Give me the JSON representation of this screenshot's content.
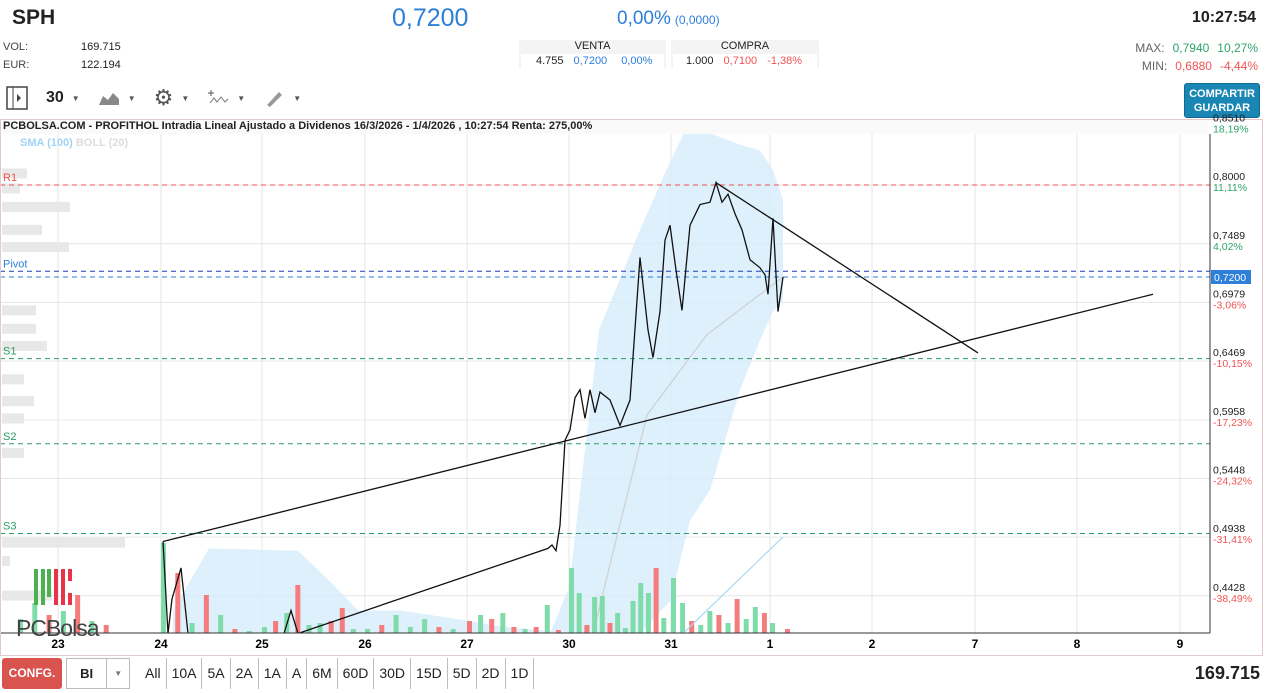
{
  "header": {
    "symbol": "SPH",
    "price": "0,7200",
    "change_pct": "0,00%",
    "change_abs": "(0,0000)",
    "time": "10:27:54",
    "vol_label": "VOL:",
    "vol": "169.715",
    "eur_label": "EUR:",
    "eur": "122.194",
    "max_label": "MAX:",
    "max": "0,7940",
    "max_pct": "10,27%",
    "min_label": "MIN:",
    "min": "0,6880",
    "min_pct": "-4,44%"
  },
  "orderbook": {
    "sell_label": "VENTA",
    "sell_qty": "4.755",
    "sell_price": "0,7200",
    "sell_pct": "0,00%",
    "buy_label": "COMPRA",
    "buy_qty": "1.000",
    "buy_price": "0,7100",
    "buy_pct": "-1,38%"
  },
  "toolbar": {
    "interval": "30",
    "share_label": "COMPARTIR",
    "save_label": "GUARDAR"
  },
  "chart": {
    "title": "PCBOLSA.COM - PROFITHOL Intradia Lineal Ajustado a Dividenos 16/3/2026 - 1/4/2026 , 10:27:54 Renta: 275,00%",
    "legend_sma": "SMA (100)",
    "legend_boll": "BOLL (20)",
    "logo": "PCBolsa",
    "current_price_label": "0,7200"
  },
  "colors": {
    "accent": "#2d7fd8",
    "up": "#2ea36b",
    "down": "#f05454",
    "band": "#d6ecfb",
    "button_red": "#d9534f",
    "share": "#1a86b4"
  },
  "chart_data": {
    "type": "line",
    "x_ticks": [
      "23",
      "24",
      "25",
      "26",
      "27",
      "30",
      "31",
      "1",
      "2",
      "7",
      "8",
      "9"
    ],
    "y_ticks": [
      {
        "v": "0,8510",
        "p": "18,19%"
      },
      {
        "v": "0,8000",
        "p": "11,11%"
      },
      {
        "v": "0,7489",
        "p": "4,02%"
      },
      {
        "v": "0,6979",
        "p": "-3,06%"
      },
      {
        "v": "0,6469",
        "p": "-10,15%"
      },
      {
        "v": "0,5958",
        "p": "-17,23%"
      },
      {
        "v": "0,5448",
        "p": "-24,32%"
      },
      {
        "v": "0,4938",
        "p": "-31,41%"
      },
      {
        "v": "0,4428",
        "p": "-38,49%"
      }
    ],
    "ylim": [
      0.41,
      0.857
    ],
    "grid": true,
    "pivots": [
      {
        "name": "R1",
        "value": 0.8,
        "color": "#f05454"
      },
      {
        "name": "Pivot",
        "value": 0.725,
        "color": "#1f3fbf"
      },
      {
        "name": "S1",
        "value": 0.649,
        "color": "#2a9a6a"
      },
      {
        "name": "S2",
        "value": 0.575,
        "color": "#2a9a6a"
      },
      {
        "name": "S3",
        "value": 0.497,
        "color": "#2a9a6a"
      }
    ],
    "price": [
      [
        "24",
        "09:10",
        0.49
      ],
      [
        "24",
        "09:35",
        0.41
      ],
      [
        "24",
        "09:55",
        0.44
      ],
      [
        "24",
        "10:40",
        0.467
      ],
      [
        "24",
        "11:15",
        0.41
      ],
      [
        "25",
        "10:50",
        0.41
      ],
      [
        "25",
        "11:25",
        0.43
      ],
      [
        "25",
        "12:00",
        0.41
      ],
      [
        "27",
        "15:45",
        0.484
      ],
      [
        "27",
        "16:05",
        0.487
      ],
      [
        "27",
        "16:25",
        0.482
      ],
      [
        "27",
        "16:45",
        0.504
      ],
      [
        "27",
        "17:10",
        0.578
      ],
      [
        "30",
        "09:05",
        0.587
      ],
      [
        "30",
        "09:30",
        0.615
      ],
      [
        "30",
        "09:55",
        0.622
      ],
      [
        "30",
        "10:20",
        0.597
      ],
      [
        "30",
        "10:45",
        0.622
      ],
      [
        "30",
        "11:10",
        0.602
      ],
      [
        "30",
        "11:35",
        0.62
      ],
      [
        "30",
        "12:25",
        0.613
      ],
      [
        "30",
        "13:15",
        0.591
      ],
      [
        "30",
        "14:05",
        0.613
      ],
      [
        "30",
        "14:55",
        0.737
      ],
      [
        "30",
        "15:35",
        0.674
      ],
      [
        "30",
        "16:00",
        0.65
      ],
      [
        "30",
        "16:35",
        0.69
      ],
      [
        "30",
        "17:00",
        0.752
      ],
      [
        "30",
        "17:25",
        0.765
      ],
      [
        "31",
        "09:25",
        0.726
      ],
      [
        "31",
        "09:55",
        0.691
      ],
      [
        "31",
        "10:35",
        0.765
      ],
      [
        "31",
        "11:25",
        0.783
      ],
      [
        "31",
        "12:15",
        0.785
      ],
      [
        "31",
        "12:45",
        0.802
      ],
      [
        "31",
        "13:15",
        0.785
      ],
      [
        "31",
        "13:45",
        0.792
      ],
      [
        "31",
        "14:20",
        0.775
      ],
      [
        "31",
        "14:55",
        0.761
      ],
      [
        "31",
        "15:35",
        0.735
      ],
      [
        "31",
        "16:25",
        0.728
      ],
      [
        "31",
        "16:50",
        0.722
      ],
      [
        "31",
        "17:05",
        0.705
      ],
      [
        "1",
        "09:15",
        0.771
      ],
      [
        "1",
        "09:40",
        0.69
      ],
      [
        "1",
        "10:05",
        0.72
      ]
    ],
    "bollinger": [
      [
        "24",
        "10:00",
        0.43,
        0.41
      ],
      [
        "24",
        "13:00",
        0.484,
        0.41
      ],
      [
        "25",
        "12:00",
        0.482,
        0.41
      ],
      [
        "25",
        "15:00",
        0.452,
        0.41
      ],
      [
        "25",
        "17:00",
        0.43,
        0.41
      ],
      [
        "26",
        "12:00",
        0.43,
        0.41
      ],
      [
        "26",
        "17:00",
        0.422,
        0.41
      ],
      [
        "27",
        "12:00",
        0.416,
        0.41
      ],
      [
        "27",
        "16:00",
        0.412,
        0.41
      ],
      [
        "30",
        "09:00",
        0.45,
        0.41
      ],
      [
        "30",
        "11:30",
        0.674,
        0.41
      ],
      [
        "30",
        "14:55",
        0.761,
        0.41
      ],
      [
        "30",
        "17:25",
        0.82,
        0.438
      ],
      [
        "31",
        "10:35",
        0.856,
        0.508
      ],
      [
        "31",
        "12:15",
        0.845,
        0.535
      ],
      [
        "31",
        "13:30",
        0.84,
        0.578
      ],
      [
        "31",
        "14:45",
        0.835,
        0.622
      ],
      [
        "31",
        "16:25",
        0.83,
        0.665
      ],
      [
        "1",
        "09:15",
        0.813,
        0.69
      ],
      [
        "1",
        "10:05",
        0.787,
        0.7
      ]
    ],
    "sma": [
      [
        "30",
        "11:00",
        0.41
      ],
      [
        "30",
        "15:30",
        0.6
      ],
      [
        "31",
        "12:00",
        0.67
      ],
      [
        "1",
        "10:05",
        0.72
      ]
    ],
    "sma_volume": [
      [
        "31",
        "10:00",
        0.41
      ],
      [
        "1",
        "10:05",
        0.494
      ]
    ],
    "volume": [
      [
        "23",
        [
          [
            14,
            1
          ],
          [
            30,
            1
          ],
          [
            18,
            0
          ],
          [
            22,
            1
          ],
          [
            38,
            0
          ],
          [
            12,
            1
          ],
          [
            8,
            0
          ]
        ]
      ],
      [
        "24",
        [
          [
            90,
            1
          ],
          [
            60,
            0
          ],
          [
            10,
            1
          ],
          [
            38,
            0
          ],
          [
            18,
            1
          ],
          [
            4,
            0
          ],
          [
            2,
            1
          ]
        ]
      ],
      [
        "25",
        [
          [
            6,
            1
          ],
          [
            12,
            0
          ],
          [
            20,
            1
          ],
          [
            48,
            0
          ],
          [
            8,
            1
          ],
          [
            10,
            1
          ],
          [
            12,
            0
          ],
          [
            25,
            0
          ],
          [
            4,
            1
          ]
        ]
      ],
      [
        "26",
        [
          [
            4,
            1
          ],
          [
            8,
            0
          ],
          [
            18,
            1
          ],
          [
            6,
            1
          ],
          [
            14,
            1
          ],
          [
            6,
            0
          ],
          [
            4,
            1
          ]
        ]
      ],
      [
        "27",
        [
          [
            12,
            0
          ],
          [
            18,
            1
          ],
          [
            14,
            0
          ],
          [
            20,
            1
          ],
          [
            6,
            0
          ],
          [
            4,
            1
          ],
          [
            6,
            0
          ],
          [
            28,
            1
          ],
          [
            3,
            0
          ]
        ]
      ],
      [
        "30",
        [
          [
            65,
            1
          ],
          [
            40,
            1
          ],
          [
            8,
            0
          ],
          [
            36,
            1
          ],
          [
            37,
            1
          ],
          [
            10,
            0
          ],
          [
            20,
            1
          ],
          [
            5,
            1
          ],
          [
            32,
            1
          ],
          [
            50,
            1
          ],
          [
            40,
            1
          ],
          [
            65,
            0
          ],
          [
            15,
            1
          ]
        ]
      ],
      [
        "31",
        [
          [
            55,
            1
          ],
          [
            30,
            1
          ],
          [
            12,
            0
          ],
          [
            8,
            1
          ],
          [
            22,
            1
          ],
          [
            18,
            0
          ],
          [
            10,
            1
          ],
          [
            34,
            0
          ],
          [
            14,
            1
          ],
          [
            26,
            1
          ],
          [
            20,
            0
          ]
        ]
      ],
      [
        "1",
        [
          [
            10,
            1
          ],
          [
            4,
            0
          ]
        ]
      ]
    ],
    "volume_profile": [
      [
        0.81,
        25
      ],
      [
        0.797,
        18
      ],
      [
        0.781,
        68
      ],
      [
        0.761,
        40
      ],
      [
        0.746,
        67
      ],
      [
        0.691,
        34
      ],
      [
        0.675,
        34
      ],
      [
        0.66,
        45
      ],
      [
        0.631,
        22
      ],
      [
        0.612,
        32
      ],
      [
        0.597,
        22
      ],
      [
        0.567,
        22
      ],
      [
        0.489,
        123
      ],
      [
        0.473,
        8
      ],
      [
        0.443,
        50
      ]
    ],
    "trendlines": [
      {
        "from": [
          "24",
          "09:10",
          0.49
        ],
        "to": [
          "8",
          "15:20",
          0.705
        ]
      },
      {
        "from": [
          "31",
          "12:45",
          0.802
        ],
        "to": [
          "7",
          "09:15",
          0.654
        ]
      }
    ]
  },
  "bottom": {
    "config_label": "CONFG.",
    "mode": "BI",
    "ranges": [
      "All",
      "10A",
      "5A",
      "2A",
      "1A",
      "A",
      "6M",
      "60D",
      "30D",
      "15D",
      "5D",
      "2D",
      "1D"
    ],
    "total_volume": "169.715"
  }
}
